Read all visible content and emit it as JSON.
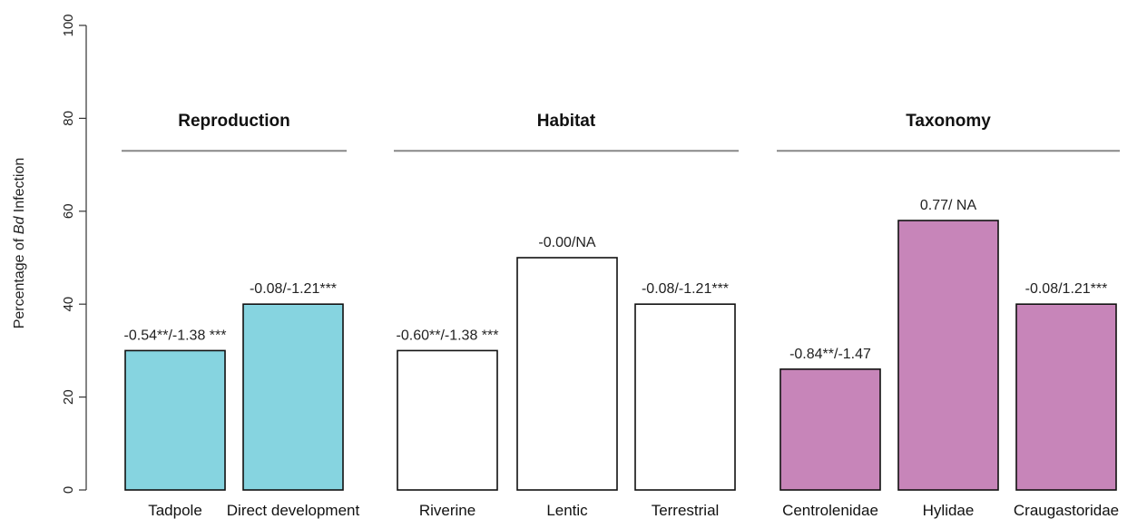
{
  "chart_data": {
    "type": "bar",
    "ylabel_parts": [
      "Percentage of ",
      "Bd",
      " Infection"
    ],
    "ylim": [
      0,
      100
    ],
    "yticks": [
      0,
      20,
      40,
      60,
      80,
      100
    ],
    "grid": false,
    "groups": [
      {
        "title": "Reproduction",
        "color": "#86d4e0",
        "start": 0,
        "end": 1
      },
      {
        "title": "Habitat",
        "color": "#ffffff",
        "start": 2,
        "end": 4
      },
      {
        "title": "Taxonomy",
        "color": "#c785b9",
        "start": 5,
        "end": 7
      }
    ],
    "categories": [
      "Tadpole",
      "Direct development",
      "Riverine",
      "Lentic",
      "Terrestrial",
      "Centrolenidae",
      "Hylidae",
      "Craugastoridae"
    ],
    "values": [
      30,
      40,
      30,
      50,
      40,
      26,
      58,
      40
    ],
    "bar_labels": [
      "-0.54**/-1.38 ***",
      "-0.08/-1.21***",
      "-0.60**/-1.38 ***",
      "-0.00/NA",
      "-0.08/-1.21***",
      "-0.84**/-1.47",
      "0.77/ NA",
      "-0.08/1.21***"
    ],
    "group_line_value": 73
  }
}
